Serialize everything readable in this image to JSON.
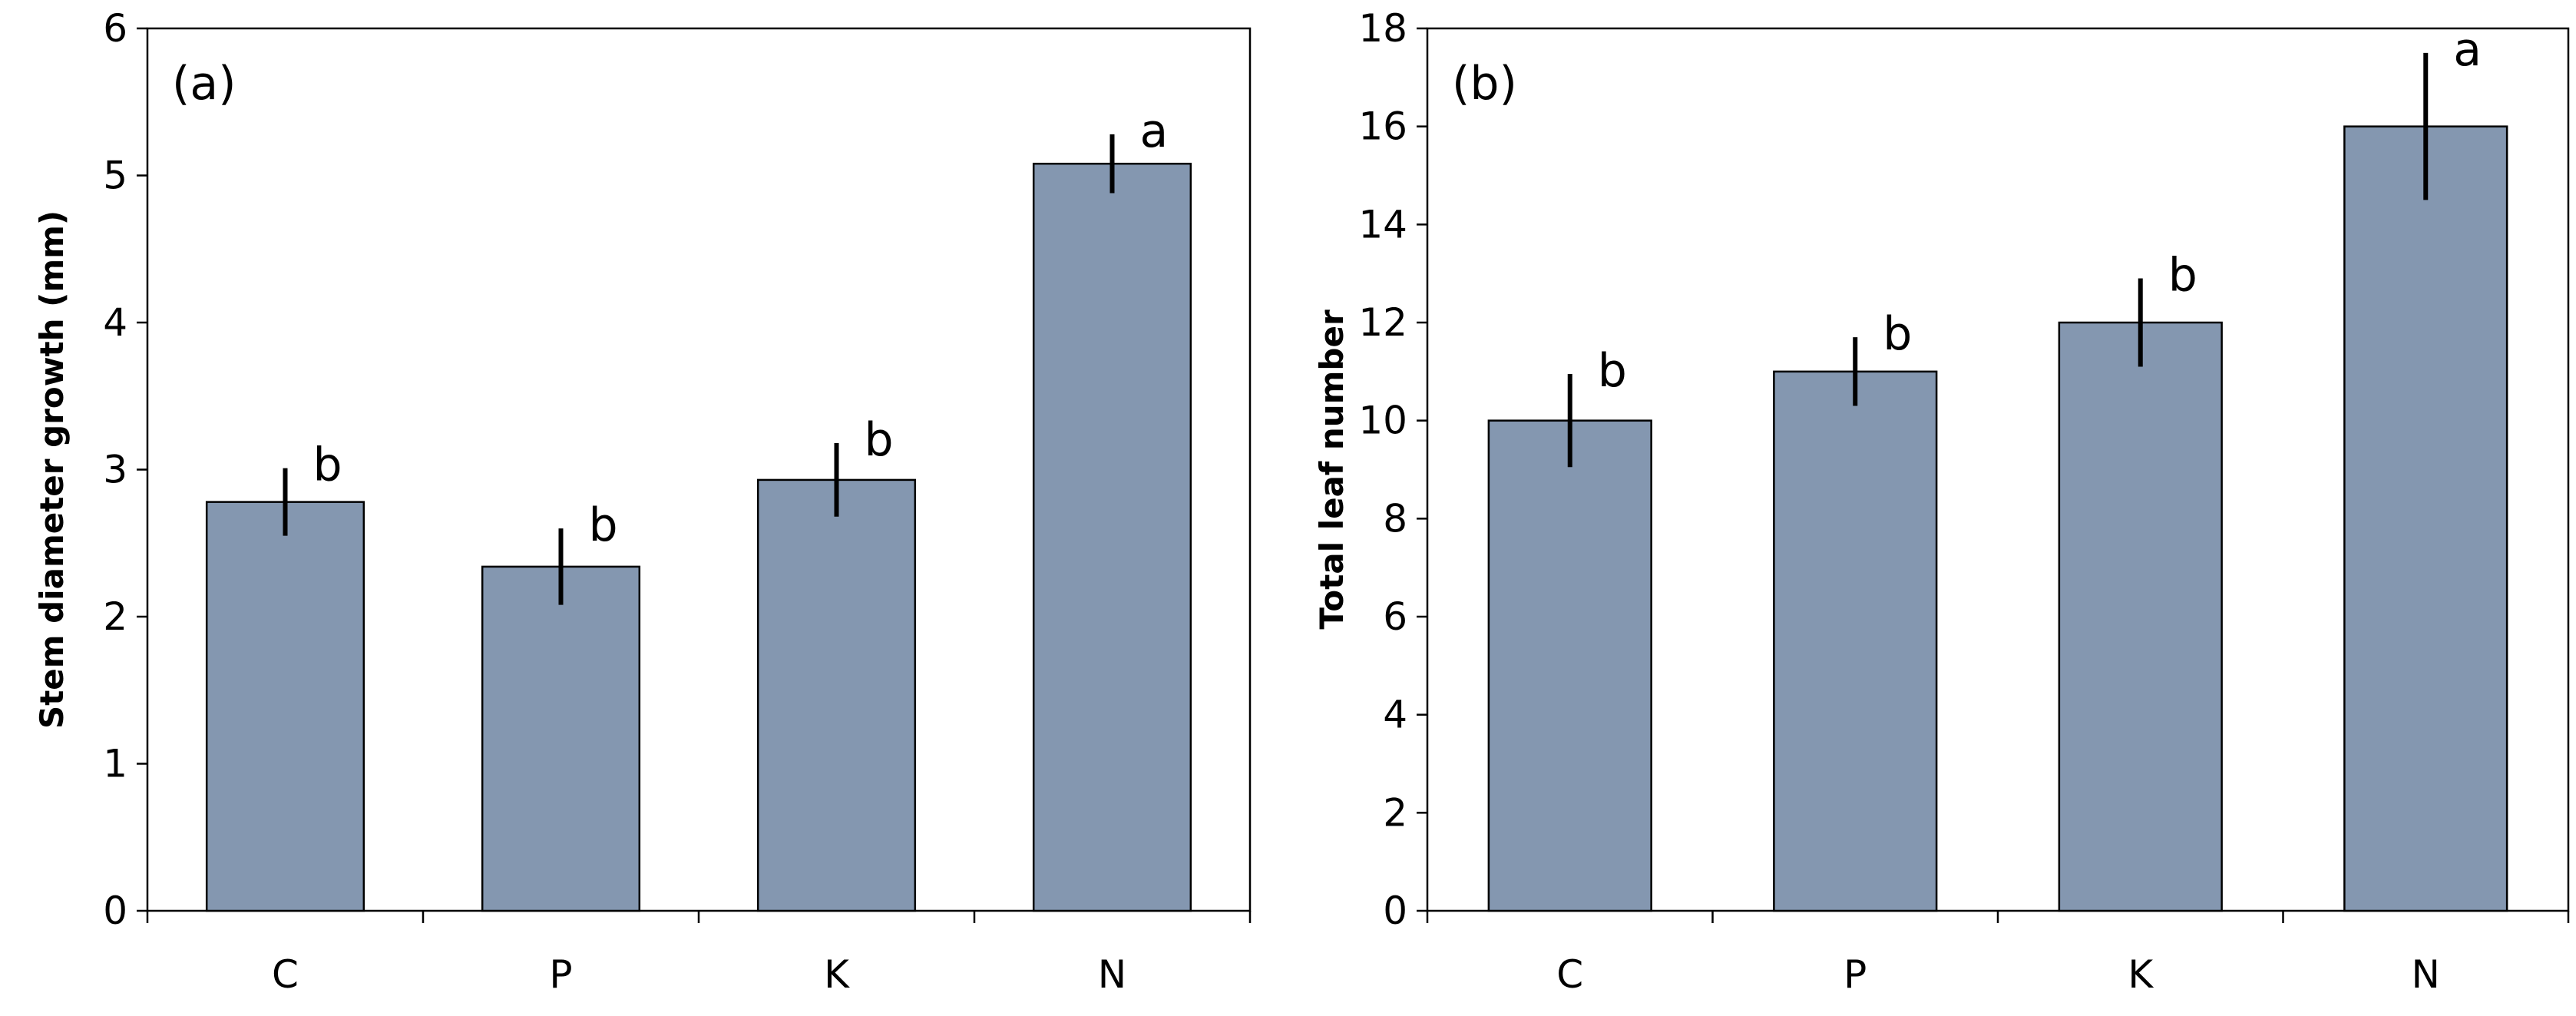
{
  "chart_data": [
    {
      "type": "bar",
      "panel_label": "(a)",
      "ylabel": "Stem diameter growth (mm)",
      "categories": [
        "C",
        "P",
        "K",
        "N"
      ],
      "values": [
        2.78,
        2.34,
        2.93,
        5.08
      ],
      "errors": [
        0.23,
        0.26,
        0.25,
        0.2
      ],
      "significance": [
        "b",
        "b",
        "b",
        "a"
      ],
      "ylim": [
        0,
        6
      ],
      "yticks": [
        "0",
        "1",
        "2",
        "3",
        "4",
        "5",
        "6"
      ],
      "bar_color": "#8497B0"
    },
    {
      "type": "bar",
      "panel_label": "(b)",
      "ylabel": "Total leaf number",
      "categories": [
        "C",
        "P",
        "K",
        "N"
      ],
      "values": [
        10,
        11,
        12,
        16
      ],
      "errors": [
        0.95,
        0.7,
        0.9,
        1.5
      ],
      "significance": [
        "b",
        "b",
        "b",
        "a"
      ],
      "ylim": [
        0,
        18
      ],
      "yticks": [
        "0",
        "2",
        "4",
        "6",
        "8",
        "10",
        "12",
        "14",
        "16",
        "18"
      ],
      "bar_color": "#8497B0"
    }
  ]
}
